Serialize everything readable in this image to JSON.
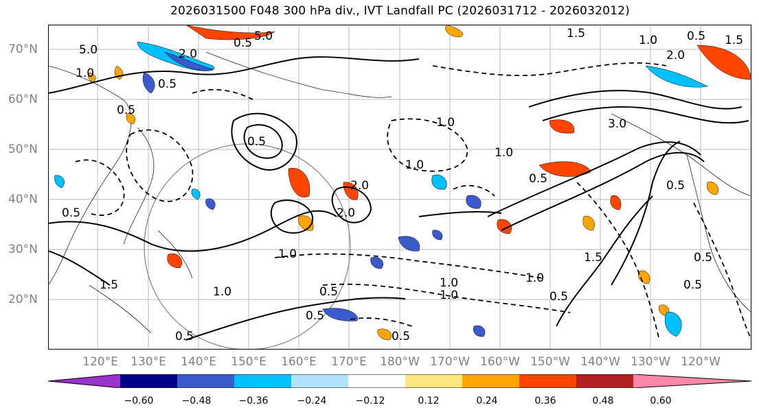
{
  "title": "2026031500 F048 300 hPa div., IVT Landfall PC (2026031712 - 2026032012)",
  "lat_labels": [
    "70°N",
    "60°N",
    "50°N",
    "40°N",
    "30°N",
    "20°N"
  ],
  "lon_labels": [
    "120°E",
    "130°E",
    "140°E",
    "150°E",
    "160°E",
    "170°E",
    "180°W",
    "170°W",
    "160°W",
    "150°W",
    "140°W",
    "130°W",
    "120°W"
  ],
  "colorbar": {
    "colors": [
      "#9932cc",
      "#00008b",
      "#3b5bcc",
      "#00bfff",
      "#b0e2ff",
      "#ffffff",
      "#ffe680",
      "#ffa500",
      "#ff4500",
      "#b22222",
      "#ff88aa"
    ],
    "tick_labels": [
      "−0.60",
      "−0.48",
      "−0.36",
      "−0.24",
      "−0.12",
      "0.12",
      "0.24",
      "0.36",
      "0.48",
      "0.60"
    ]
  },
  "contour_labels": [
    "5.0",
    "5.0",
    "2.0",
    "0.5",
    "1.5",
    "1.0",
    "0.5",
    "2.0",
    "1.5",
    "1.0",
    "0.5",
    "0.5",
    "1.0",
    "2.0",
    "1.0",
    "1.5",
    "1.0",
    "0.5",
    "0.5",
    "1.0",
    "1.0",
    "0.5",
    "1.0",
    "0.5",
    "0.5",
    "0.5",
    "1.0",
    "0.5",
    "1.5",
    "0.5",
    "2.0",
    "0.5",
    "0.5",
    "3.0",
    "1.0",
    "0.5"
  ]
}
